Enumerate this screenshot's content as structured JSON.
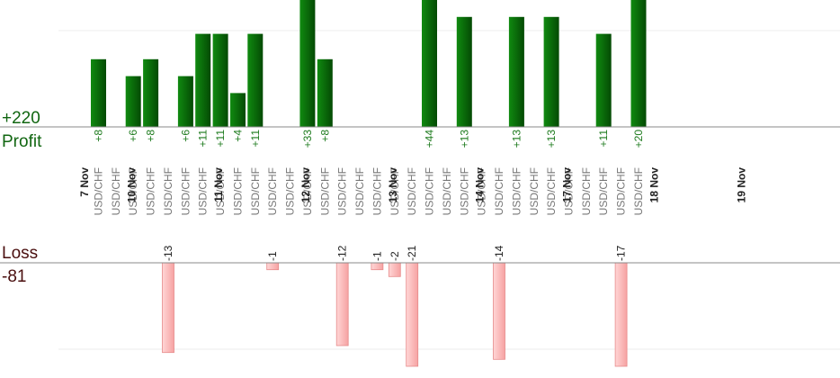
{
  "chart_data": {
    "type": "bar",
    "totals": {
      "profit_value": "+220",
      "profit_label": "Profit",
      "loss_label": "Loss",
      "loss_value": "-81"
    },
    "date_labels": [
      "7 Nov",
      "10 Nov",
      "11 Nov",
      "12 Nov",
      "13 Nov",
      "14 Nov",
      "17 Nov",
      "18 Nov",
      "19 Nov"
    ],
    "trades": [
      {
        "pair": "USD/CHF",
        "value": 8,
        "label": "+8"
      },
      {
        "pair": "USD/CHF",
        "value": 0,
        "label": ""
      },
      {
        "pair": "USD/CHF",
        "value": 6,
        "label": "+6"
      },
      {
        "pair": "USD/CHF",
        "value": 8,
        "label": "+8"
      },
      {
        "pair": "USD/CHF",
        "value": -13,
        "label": "-13"
      },
      {
        "pair": "USD/CHF",
        "value": 6,
        "label": "+6"
      },
      {
        "pair": "USD/CHF",
        "value": 11,
        "label": "+11"
      },
      {
        "pair": "USD/CHF",
        "value": 11,
        "label": "+11"
      },
      {
        "pair": "USD/CHF",
        "value": 4,
        "label": "+4"
      },
      {
        "pair": "USD/CHF",
        "value": 11,
        "label": "+11"
      },
      {
        "pair": "USD/CHF",
        "value": -1,
        "label": "-1"
      },
      {
        "pair": "USD/CHF",
        "value": 0,
        "label": ""
      },
      {
        "pair": "USD/CHF",
        "value": 33,
        "label": "+33"
      },
      {
        "pair": "USD/CHF",
        "value": 8,
        "label": "+8"
      },
      {
        "pair": "USD/CHF",
        "value": -12,
        "label": "-12"
      },
      {
        "pair": "USD/CHF",
        "value": 0,
        "label": ""
      },
      {
        "pair": "USD/CHF",
        "value": -1,
        "label": "-1"
      },
      {
        "pair": "USD/CHF",
        "value": -2,
        "label": "-2"
      },
      {
        "pair": "USD/CHF",
        "value": -21,
        "label": "-21"
      },
      {
        "pair": "USD/CHF",
        "value": 44,
        "label": "+44"
      },
      {
        "pair": "USD/CHF",
        "value": 0,
        "label": ""
      },
      {
        "pair": "USD/CHF",
        "value": 13,
        "label": "+13"
      },
      {
        "pair": "USD/CHF",
        "value": 0,
        "label": ""
      },
      {
        "pair": "USD/CHF",
        "value": -14,
        "label": "-14"
      },
      {
        "pair": "USD/CHF",
        "value": 13,
        "label": "+13"
      },
      {
        "pair": "USD/CHF",
        "value": 0,
        "label": ""
      },
      {
        "pair": "USD/CHF",
        "value": 13,
        "label": "+13"
      },
      {
        "pair": "USD/CHF",
        "value": 0,
        "label": ""
      },
      {
        "pair": "USD/CHF",
        "value": 0,
        "label": ""
      },
      {
        "pair": "USD/CHF",
        "value": 11,
        "label": "+11"
      },
      {
        "pair": "USD/CHF",
        "value": -17,
        "label": "-17"
      },
      {
        "pair": "USD/CHF",
        "value": 20,
        "label": "+20"
      }
    ],
    "profit_axis_max": 15,
    "loss_axis_max": 15,
    "gridlines": true,
    "colors": {
      "profit_bar_light": "#108a10",
      "profit_bar_dark": "#044a04",
      "loss_bar_light": "#ffd6d6",
      "loss_bar_dark": "#f6a2a2",
      "loss_bar_stroke": "#e78a8a"
    }
  }
}
